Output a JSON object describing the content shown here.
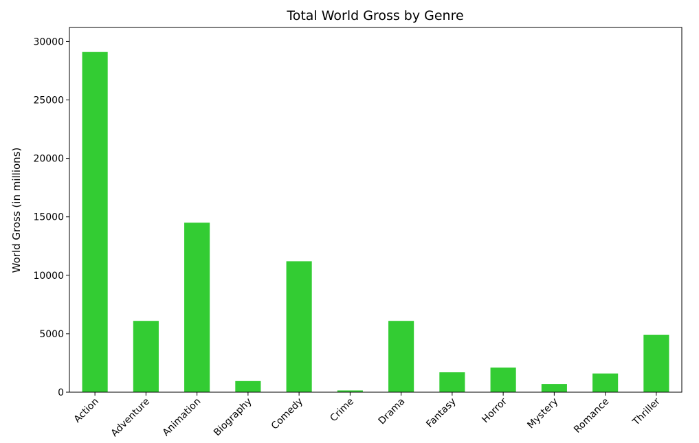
{
  "chart_data": {
    "type": "bar",
    "title": "Total World Gross by Genre",
    "xlabel": "",
    "ylabel": "World Gross (in millions)",
    "categories": [
      "Action",
      "Adventure",
      "Animation",
      "Biography",
      "Comedy",
      "Crime",
      "Drama",
      "Fantasy",
      "Horror",
      "Mystery",
      "Romance",
      "Thriller"
    ],
    "values": [
      29100,
      6100,
      14500,
      950,
      11200,
      150,
      6100,
      1700,
      2100,
      700,
      1600,
      4900
    ],
    "ylim": [
      0,
      31200
    ],
    "yticks": [
      0,
      5000,
      10000,
      15000,
      20000,
      25000,
      30000
    ],
    "bar_color": "#33cc33",
    "grid": false,
    "legend": null
  }
}
